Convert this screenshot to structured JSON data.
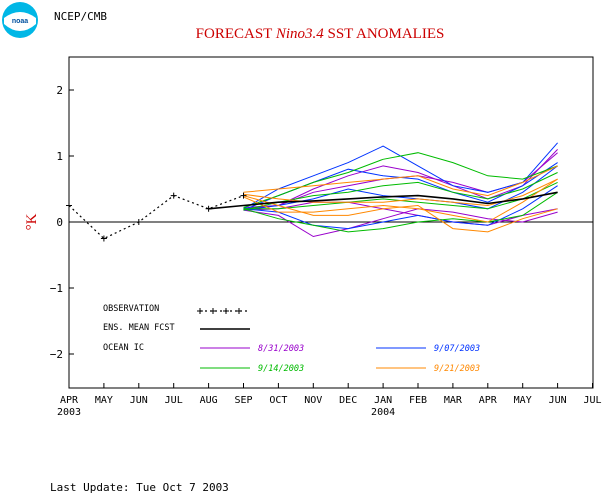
{
  "header": {
    "org": "NCEP/CMB",
    "title_prefix": "FORECAST ",
    "title_italic": "Nino3.4",
    "title_suffix": " SST ANOMALIES",
    "footer": "Last Update: Tue Oct 7 2003",
    "logo_text": "noaa"
  },
  "colors": {
    "title": "#cc0000",
    "ylabel": "#cc0000",
    "logo": "#00b7e6",
    "observation": "#000000",
    "mean": "#000000"
  },
  "chart_data": {
    "type": "line",
    "title": "FORECAST Nino3.4 SST ANOMALIES",
    "xlabel": "",
    "ylabel": "°K",
    "ylim": [
      -2.5,
      2.5
    ],
    "yticks": [
      -2,
      -1,
      0,
      1,
      2
    ],
    "grid": false,
    "legend_position": "bottom-left inside plot",
    "x_ticks": [
      "APR",
      "MAY",
      "JUN",
      "JUL",
      "AUG",
      "SEP",
      "OCT",
      "NOV",
      "DEC",
      "JAN",
      "FEB",
      "MAR",
      "APR",
      "MAY",
      "JUN",
      "JUL"
    ],
    "x_year_labels": [
      {
        "at": "APR",
        "label": "2003"
      },
      {
        "at": "JAN",
        "label": "2004"
      }
    ],
    "observation": {
      "name": "OBSERVATION",
      "x": [
        "APR 2003",
        "MAY 2003",
        "JUN 2003",
        "JUL 2003",
        "AUG 2003",
        "SEP 2003"
      ],
      "values": [
        0.25,
        -0.25,
        0.0,
        0.4,
        0.2,
        0.4
      ]
    },
    "ensemble_mean": {
      "name": "ENS. MEAN FCST",
      "x": [
        "AUG 2003",
        "SEP 2003",
        "OCT 2003",
        "NOV 2003",
        "DEC 2003",
        "JAN 2004",
        "FEB 2004",
        "MAR 2004",
        "APR 2004",
        "MAY 2004",
        "JUN 2004"
      ],
      "values": [
        0.2,
        0.25,
        0.3,
        0.32,
        0.35,
        0.38,
        0.4,
        0.35,
        0.28,
        0.35,
        0.45
      ]
    },
    "legend_header": "OCEAN IC",
    "groups": [
      {
        "name": "8/31/2003",
        "color": "#9900cc",
        "x_start": "SEP 2003",
        "members": [
          [
            0.22,
            0.25,
            0.5,
            0.7,
            0.85,
            0.75,
            0.55,
            0.35,
            0.55,
            1.1
          ],
          [
            0.18,
            0.1,
            -0.22,
            -0.1,
            0.05,
            0.2,
            0.15,
            0.05,
            0.0,
            0.15
          ],
          [
            0.2,
            0.25,
            0.45,
            0.55,
            0.65,
            0.7,
            0.6,
            0.45,
            0.6,
            1.05
          ],
          [
            0.18,
            0.2,
            0.3,
            0.3,
            0.2,
            0.1,
            0.0,
            -0.05,
            0.1,
            0.2
          ]
        ]
      },
      {
        "name": "9/07/2003",
        "color": "#0033ff",
        "x_start": "SEP 2003",
        "members": [
          [
            0.2,
            0.5,
            0.7,
            0.9,
            1.15,
            0.85,
            0.55,
            0.45,
            0.6,
            1.2
          ],
          [
            0.18,
            0.4,
            0.6,
            0.8,
            0.7,
            0.65,
            0.45,
            0.3,
            0.55,
            0.9
          ],
          [
            0.2,
            0.15,
            -0.05,
            -0.1,
            0.0,
            0.1,
            0.0,
            -0.05,
            0.2,
            0.55
          ],
          [
            0.18,
            0.25,
            0.35,
            0.5,
            0.4,
            0.35,
            0.3,
            0.2,
            0.45,
            0.85
          ]
        ]
      },
      {
        "name": "9/14/2003",
        "color": "#00bb00",
        "x_start": "SEP 2003",
        "members": [
          [
            0.22,
            0.4,
            0.6,
            0.75,
            0.95,
            1.05,
            0.9,
            0.7,
            0.65,
            0.85
          ],
          [
            0.2,
            0.05,
            -0.05,
            -0.15,
            -0.1,
            0.0,
            0.05,
            0.0,
            0.1,
            0.45
          ],
          [
            0.18,
            0.3,
            0.4,
            0.45,
            0.55,
            0.6,
            0.45,
            0.35,
            0.5,
            0.75
          ],
          [
            0.2,
            0.2,
            0.25,
            0.3,
            0.35,
            0.3,
            0.25,
            0.2,
            0.35,
            0.6
          ]
        ]
      },
      {
        "name": "9/21/2003",
        "color": "#ff8800",
        "x_start": "SEP 2003",
        "members": [
          [
            0.45,
            0.5,
            0.55,
            0.6,
            0.65,
            0.7,
            0.5,
            0.4,
            0.6,
            0.85
          ],
          [
            0.4,
            0.25,
            0.1,
            0.1,
            0.2,
            0.25,
            -0.1,
            -0.15,
            0.05,
            0.2
          ],
          [
            0.42,
            0.35,
            0.3,
            0.3,
            0.3,
            0.35,
            0.3,
            0.25,
            0.4,
            0.65
          ],
          [
            0.38,
            0.15,
            0.15,
            0.2,
            0.25,
            0.2,
            0.1,
            0.0,
            0.3,
            0.65
          ]
        ]
      }
    ]
  }
}
